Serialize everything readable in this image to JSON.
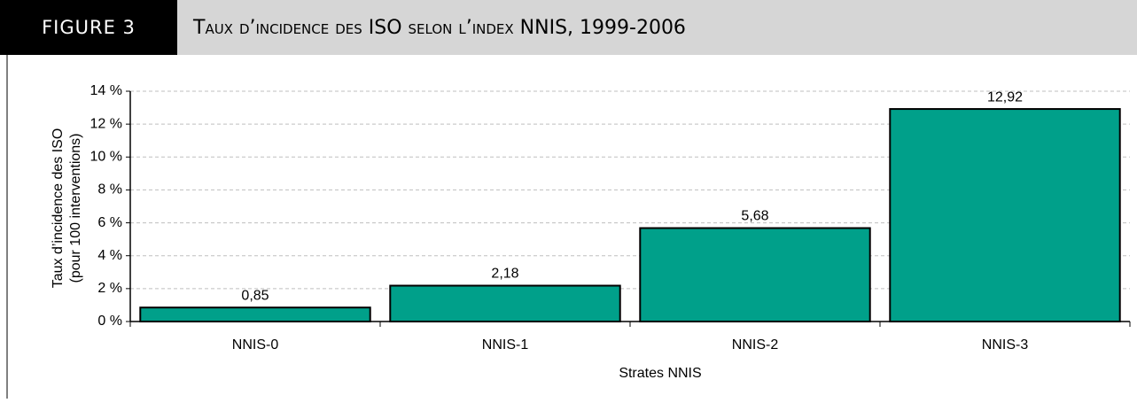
{
  "header": {
    "label": "FIGURE 3"
  },
  "chart_data": {
    "type": "bar",
    "title": "Taux d’incidence des ISO selon l’index NNIS, 1999-2006",
    "x_label": "Strates NNIS",
    "y_label": [
      "Taux d’incidence des ISO",
      "(pour 100 interventions)"
    ],
    "categories": [
      "NNIS-0",
      "NNIS-1",
      "NNIS-2",
      "NNIS-3"
    ],
    "values": [
      0.85,
      2.18,
      5.68,
      12.92
    ],
    "value_labels": [
      "0,85",
      "2,18",
      "5,68",
      "12,92"
    ],
    "color": "#00a08a",
    "ylim": [
      0,
      14
    ],
    "yticks": [
      {
        "value": 0,
        "label": "0 %"
      },
      {
        "value": 2,
        "label": "2 %"
      },
      {
        "value": 4,
        "label": "4 %"
      },
      {
        "value": 6,
        "label": "6 %"
      },
      {
        "value": 8,
        "label": "8 %"
      },
      {
        "value": 10,
        "label": "10 %"
      },
      {
        "value": 12,
        "label": "12 %"
      },
      {
        "value": 14,
        "label": "14 %"
      }
    ],
    "grid": true
  }
}
